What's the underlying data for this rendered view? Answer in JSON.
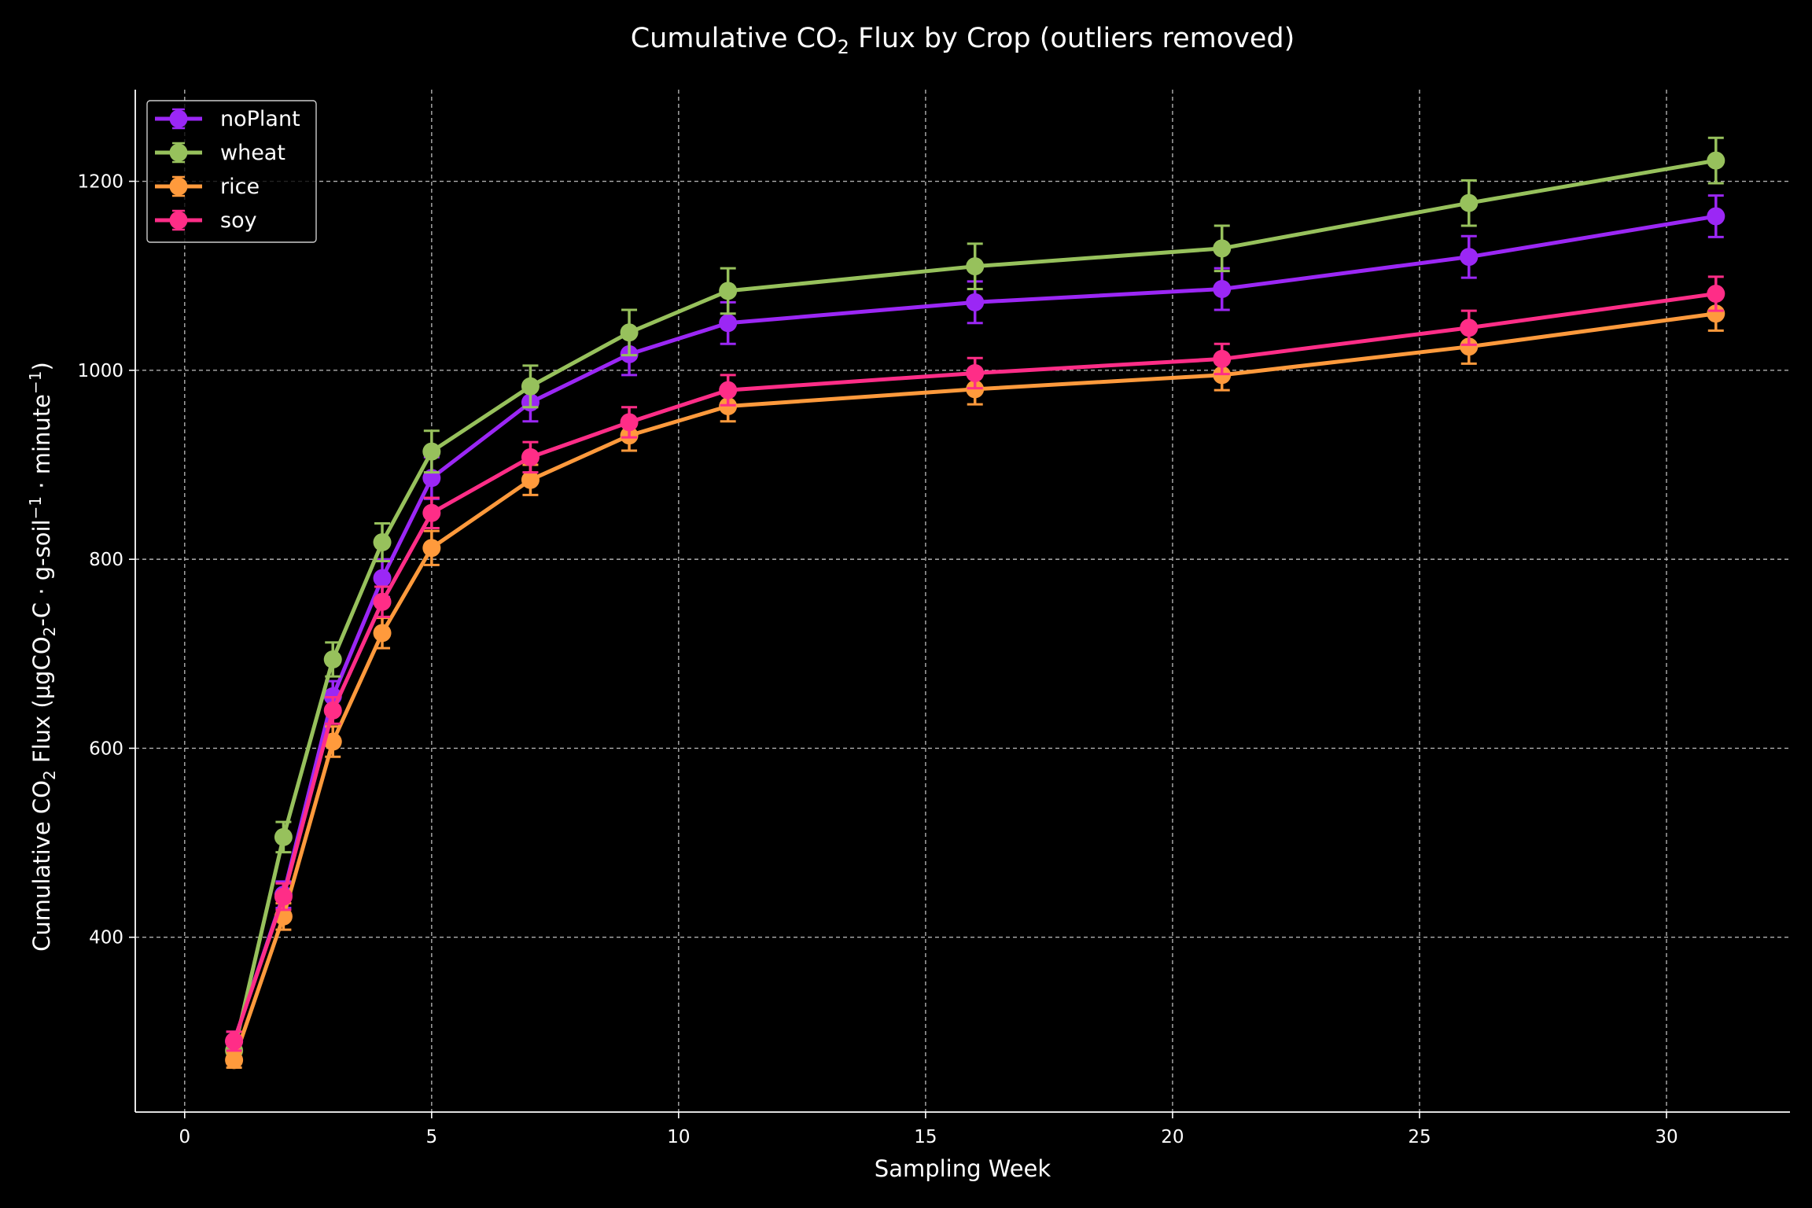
{
  "chart_data": {
    "type": "line",
    "title": "Cumulative CO₂ Flux by Crop (outliers removed)",
    "title_parts": {
      "pre": "Cumulative CO",
      "sub": "2",
      "post": " Flux by Crop (outliers removed)"
    },
    "xlabel": "Sampling Week",
    "ylabel": "Cumulative CO₂ Flux (μgCO₂-C · g-soil⁻¹ · minute⁻¹)",
    "ylabel_parts": {
      "a": "Cumulative CO",
      "a_sub": "2",
      "b": " Flux (μgCO",
      "b_sub": "2",
      "c": "-C · g-soil",
      "c_sup": "−1",
      "d": " · minute",
      "d_sup": "−1",
      "e": ")"
    },
    "xlim": [
      -1,
      32.5
    ],
    "ylim": [
      215,
      1297
    ],
    "x_ticks": [
      0,
      5,
      10,
      15,
      20,
      25,
      30
    ],
    "y_ticks": [
      400,
      600,
      800,
      1000,
      1200
    ],
    "grid": true,
    "legend_position": "upper-left",
    "x": [
      1,
      2,
      3,
      4,
      5,
      7,
      9,
      11,
      16,
      21,
      26,
      31
    ],
    "series": [
      {
        "name": "noPlant",
        "color": "#9b27f5",
        "values": [
          290,
          445,
          655,
          780,
          886,
          966,
          1017,
          1050,
          1072,
          1086,
          1120,
          1163
        ],
        "errors": [
          10,
          14,
          16,
          20,
          22,
          20,
          22,
          22,
          22,
          22,
          22,
          22
        ]
      },
      {
        "name": "wheat",
        "color": "#97c15c",
        "values": [
          280,
          506,
          694,
          818,
          914,
          983,
          1040,
          1084,
          1110,
          1129,
          1177,
          1222
        ],
        "errors": [
          10,
          16,
          18,
          20,
          22,
          22,
          24,
          24,
          24,
          24,
          24,
          24
        ]
      },
      {
        "name": "rice",
        "color": "#ff9a3c",
        "values": [
          270,
          422,
          607,
          722,
          812,
          884,
          931,
          962,
          980,
          995,
          1025,
          1060
        ],
        "errors": [
          8,
          14,
          16,
          16,
          18,
          16,
          16,
          16,
          16,
          16,
          18,
          18
        ]
      },
      {
        "name": "soy",
        "color": "#ff2d87",
        "values": [
          290,
          443,
          640,
          755,
          849,
          908,
          945,
          979,
          997,
          1012,
          1045,
          1081
        ],
        "errors": [
          10,
          14,
          14,
          16,
          16,
          16,
          16,
          16,
          16,
          16,
          18,
          18
        ]
      }
    ]
  }
}
